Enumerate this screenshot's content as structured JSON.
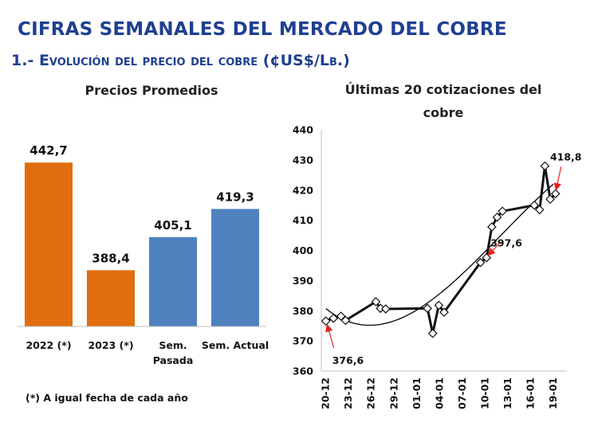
{
  "header": {
    "title": "CIFRAS SEMANALES DEL MERCADO DEL COBRE",
    "subtitle_prefix": "1.- E",
    "subtitle_rest": "volución del precio del cobre (¢US$/Lb.)"
  },
  "footnote": "(*) A igual fecha de cada año",
  "colors": {
    "orange": "#e26d0e",
    "blue": "#4f81bd",
    "title_blue": "#1f3f91"
  },
  "chart_data": [
    {
      "type": "bar",
      "title": "Precios Promedios",
      "categories": [
        [
          "2022 (*)"
        ],
        [
          "2023 (*)"
        ],
        [
          "Sem.",
          "Pasada"
        ],
        [
          "Sem. Actual"
        ]
      ],
      "values": [
        442.7,
        388.4,
        405.1,
        419.3
      ],
      "value_labels": [
        "442,7",
        "388,4",
        "405,1",
        "419,3"
      ],
      "bar_colors": [
        "#e26d0e",
        "#e26d0e",
        "#4f81bd",
        "#4f81bd"
      ],
      "ylim": [
        360,
        450
      ]
    },
    {
      "type": "line",
      "title": [
        "Últimas 20 cotizaciones del",
        "cobre"
      ],
      "ylim": [
        360,
        440
      ],
      "yticks": [
        360,
        370,
        380,
        390,
        400,
        410,
        420,
        430,
        440
      ],
      "x_tick_labels": [
        "20-12",
        "23-12",
        "26-12",
        "29-12",
        "01-01",
        "04-01",
        "07-01",
        "10-01",
        "13-01",
        "16-01",
        "19-01"
      ],
      "x_tick_days": [
        0,
        3,
        6,
        9,
        12,
        15,
        18,
        21,
        24,
        27,
        30
      ],
      "points": [
        {
          "day": 0,
          "value": 376.6
        },
        {
          "day": 1,
          "value": 377.5
        },
        {
          "day": 2,
          "value": 378.2
        },
        {
          "day": 2.6,
          "value": 376.8
        },
        {
          "day": 6.6,
          "value": 383.0
        },
        {
          "day": 7.2,
          "value": 380.8
        },
        {
          "day": 7.9,
          "value": 380.6
        },
        {
          "day": 13.4,
          "value": 380.8
        },
        {
          "day": 14.1,
          "value": 372.5
        },
        {
          "day": 14.9,
          "value": 381.8
        },
        {
          "day": 15.6,
          "value": 379.5
        },
        {
          "day": 20.4,
          "value": 396.0
        },
        {
          "day": 21.2,
          "value": 397.6
        },
        {
          "day": 21.9,
          "value": 407.8
        },
        {
          "day": 22.6,
          "value": 411.0
        },
        {
          "day": 23.3,
          "value": 413.0
        },
        {
          "day": 27.5,
          "value": 415.0
        },
        {
          "day": 28.2,
          "value": 413.5
        },
        {
          "day": 28.9,
          "value": 428.0
        },
        {
          "day": 29.6,
          "value": 417.0
        },
        {
          "day": 30.3,
          "value": 418.8
        }
      ],
      "trend": "polynomial",
      "annotations": [
        {
          "text": "376,6",
          "day": 0,
          "value": 376.6
        },
        {
          "text": "397,6",
          "day": 21.2,
          "value": 397.6
        },
        {
          "text": "418,8",
          "day": 30.3,
          "value": 418.8
        }
      ]
    }
  ]
}
